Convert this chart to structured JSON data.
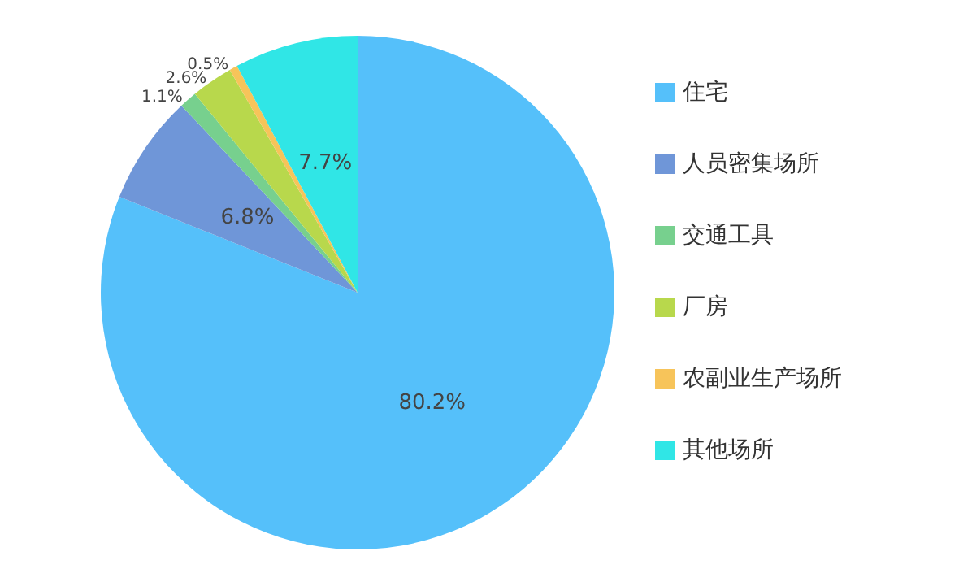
{
  "chart_data": {
    "type": "pie",
    "categories": [
      "住宅",
      "人员密集场所",
      "交通工具",
      "厂房",
      "农副业生产场所",
      "其他场所"
    ],
    "values": [
      80.2,
      6.8,
      1.1,
      2.6,
      0.5,
      7.7
    ],
    "value_labels": [
      "80.2%",
      "6.8%",
      "1.1%",
      "2.6%",
      "0.5%",
      "7.7%"
    ],
    "colors": [
      "#55c0fa",
      "#6f96d8",
      "#77d08e",
      "#b8d84c",
      "#f7c45a",
      "#30e6e6"
    ],
    "legend": "right"
  }
}
